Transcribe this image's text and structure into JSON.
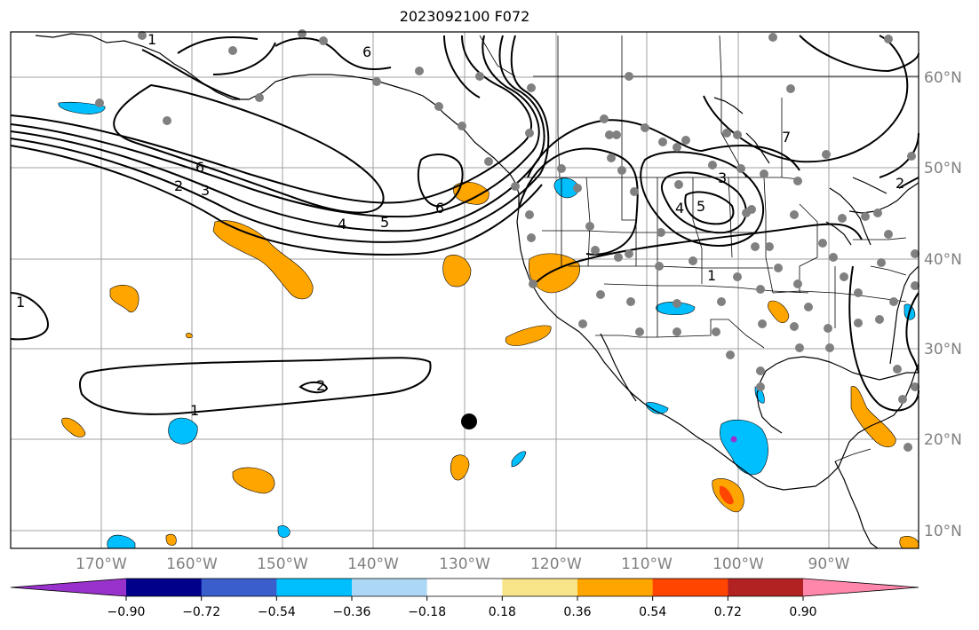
{
  "title": "2023092100 F072",
  "lon_labels": [
    "170°W",
    "160°W",
    "150°W",
    "140°W",
    "130°W",
    "120°W",
    "110°W",
    "100°W",
    "90°W"
  ],
  "lat_labels": [
    "60°N",
    "50°N",
    "40°N",
    "30°N",
    "20°N",
    "10°N"
  ],
  "colorbar": {
    "ticks": [
      "−0.90",
      "−0.72",
      "−0.54",
      "−0.36",
      "−0.18",
      "0.18",
      "0.36",
      "0.54",
      "0.72",
      "0.90"
    ],
    "colors": [
      "#9932cc",
      "#00008b",
      "#3a5fcd",
      "#00bfff",
      "#add8f5",
      "#ffffff",
      "#f8e58a",
      "#ffa500",
      "#ff4500",
      "#b22222",
      "#ff87ab"
    ]
  },
  "contour_labels": [
    "6",
    "2",
    "3",
    "4",
    "5",
    "6",
    "1",
    "2",
    "6",
    "3",
    "4",
    "5",
    "1",
    "1",
    "7",
    "2",
    "1"
  ],
  "colors": {
    "positive": "#ffa500",
    "strong_positive": "#ff4500",
    "negative": "#00bfff",
    "strong_negative": "#9932cc",
    "station": "#808080",
    "marker": "#000000"
  }
}
